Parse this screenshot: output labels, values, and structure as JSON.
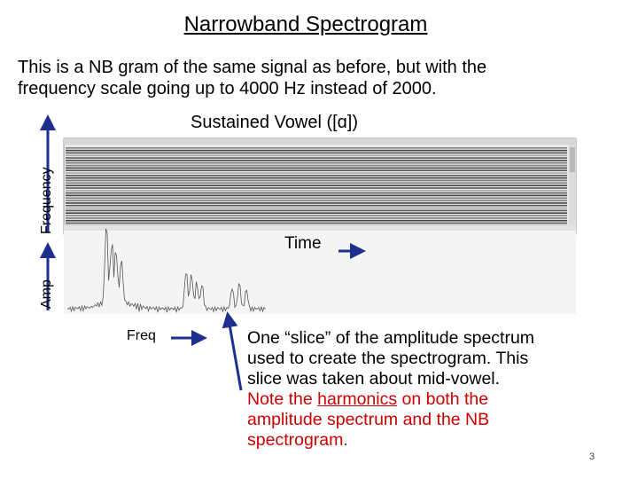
{
  "slide": {
    "title": "Narrowband Spectrogram",
    "intro_line1": "This is a NB gram of the same signal as before, but with the",
    "intro_line2": "frequency scale going up to 4000 Hz instead of 2000.",
    "vowel_label": "Sustained Vowel ([ɑ])",
    "frequency_axis_label": "Frequency",
    "amp_axis_label": "Amp",
    "time_label": "Time",
    "freq_label": "Freq",
    "description": {
      "line1": "One “slice” of the amplitude spectrum",
      "line2": "used to create the spectrogram. This",
      "line3": "slice was taken about mid-vowel.",
      "line4_before": "Note the ",
      "line4_highlight": "harmonics",
      "line4_after": " on both the",
      "line5": "amplitude spectrum and the NB",
      "line6": "spectrogram."
    },
    "page_number": "3"
  },
  "colors": {
    "arrow": "#1f2f8f",
    "note_red": "#cc0000",
    "spectrogram_band": "#1a1a1a"
  }
}
